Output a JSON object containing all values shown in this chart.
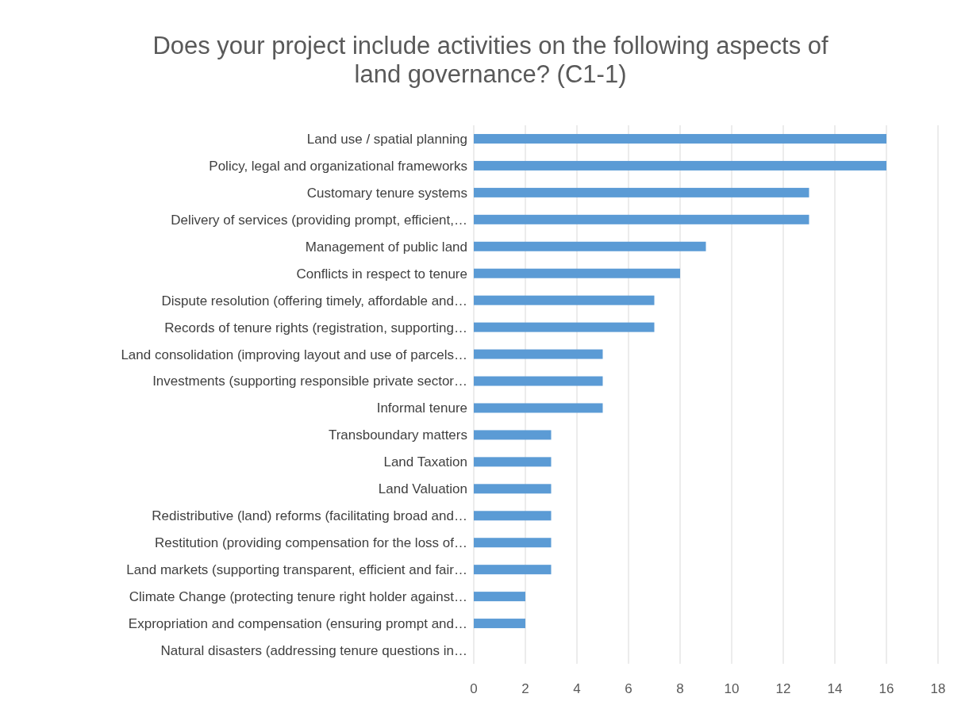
{
  "chart_data": {
    "type": "bar",
    "orientation": "horizontal",
    "title": "Does your project include activities on the following aspects of land governance? (C1-1)",
    "categories": [
      "Land use / spatial planning",
      "Policy, legal and organizational frameworks",
      "Customary tenure systems",
      "Delivery of services (providing prompt, efficient,…",
      "Management of public land",
      "Conflicts in respect to tenure",
      "Dispute resolution (offering timely, affordable and…",
      "Records of tenure rights (registration, supporting…",
      "Land consolidation (improving layout and use of parcels…",
      "Investments (supporting responsible private sector…",
      "Informal tenure",
      "Transboundary matters",
      "Land Taxation",
      "Land Valuation",
      "Redistributive (land) reforms (facilitating broad and…",
      "Restitution (providing compensation for the loss of…",
      "Land markets (supporting transparent, efficient and fair…",
      "Climate Change (protecting tenure right holder against…",
      "Expropriation and compensation (ensuring prompt and…",
      "Natural disasters (addressing tenure questions in…"
    ],
    "values": [
      16,
      16,
      13,
      13,
      9,
      8,
      7,
      7,
      5,
      5,
      5,
      3,
      3,
      3,
      3,
      3,
      3,
      2,
      2,
      0
    ],
    "color": "#5b9bd5",
    "xlim": [
      0,
      18
    ],
    "xticks": [
      0,
      2,
      4,
      6,
      8,
      10,
      12,
      14,
      16,
      18
    ],
    "grid": "x"
  }
}
